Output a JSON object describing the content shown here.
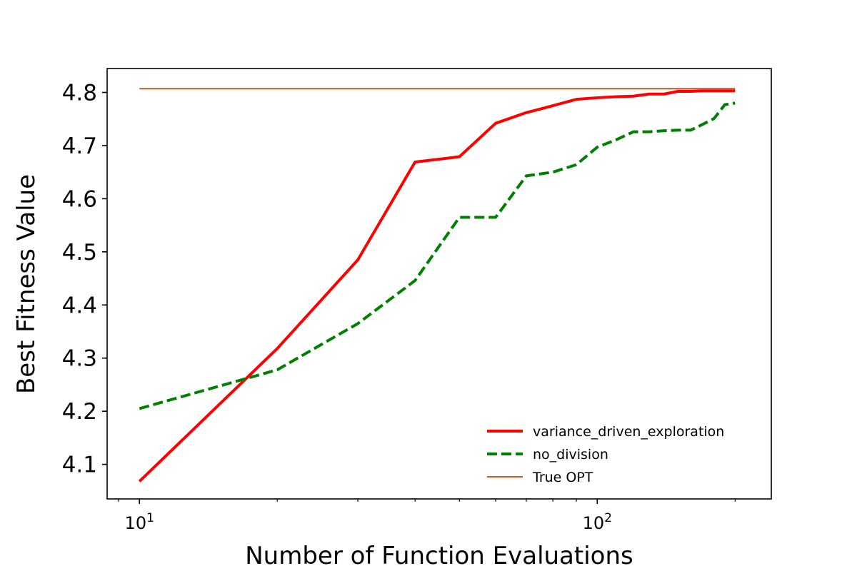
{
  "chart_data": {
    "type": "line",
    "title": "",
    "xlabel": "Number of Function Evaluations",
    "ylabel": "Best Fitness Value",
    "xscale": "log",
    "xlim": [
      8.5,
      240
    ],
    "ylim": [
      4.035,
      4.845
    ],
    "yticks": [
      4.1,
      4.2,
      4.3,
      4.4,
      4.5,
      4.6,
      4.7,
      4.8
    ],
    "ytick_labels": [
      "4.1",
      "4.2",
      "4.3",
      "4.4",
      "4.5",
      "4.6",
      "4.7",
      "4.8"
    ],
    "xticks_major": [
      10,
      100
    ],
    "xtick_labels": [
      {
        "base": "10",
        "exp": "1"
      },
      {
        "base": "10",
        "exp": "2"
      }
    ],
    "grid": false,
    "legend_position": "lower-right",
    "series": [
      {
        "name": "variance_driven_exploration",
        "color": "#ff0000",
        "style": "solid",
        "x": [
          10,
          20,
          30,
          40,
          50,
          60,
          70,
          80,
          90,
          100,
          110,
          120,
          130,
          140,
          150,
          160,
          170,
          180,
          190,
          200
        ],
        "y": [
          4.068,
          4.318,
          4.485,
          4.669,
          4.679,
          4.742,
          4.762,
          4.775,
          4.787,
          4.79,
          4.792,
          4.793,
          4.797,
          4.797,
          4.802,
          4.802,
          4.803,
          4.803,
          4.803,
          4.803
        ]
      },
      {
        "name": "no_division",
        "color": "#008000",
        "style": "dashed",
        "x": [
          10,
          20,
          30,
          40,
          50,
          60,
          70,
          80,
          90,
          100,
          110,
          120,
          130,
          140,
          150,
          160,
          170,
          180,
          190,
          200
        ],
        "y": [
          4.205,
          4.278,
          4.365,
          4.446,
          4.565,
          4.565,
          4.643,
          4.65,
          4.664,
          4.697,
          4.711,
          4.726,
          4.726,
          4.728,
          4.729,
          4.729,
          4.74,
          4.751,
          4.777,
          4.78
        ]
      },
      {
        "name": "True OPT",
        "color": "#cc5522",
        "style": "thin",
        "x": [
          10,
          200
        ],
        "y": [
          4.807,
          4.807
        ]
      }
    ]
  }
}
